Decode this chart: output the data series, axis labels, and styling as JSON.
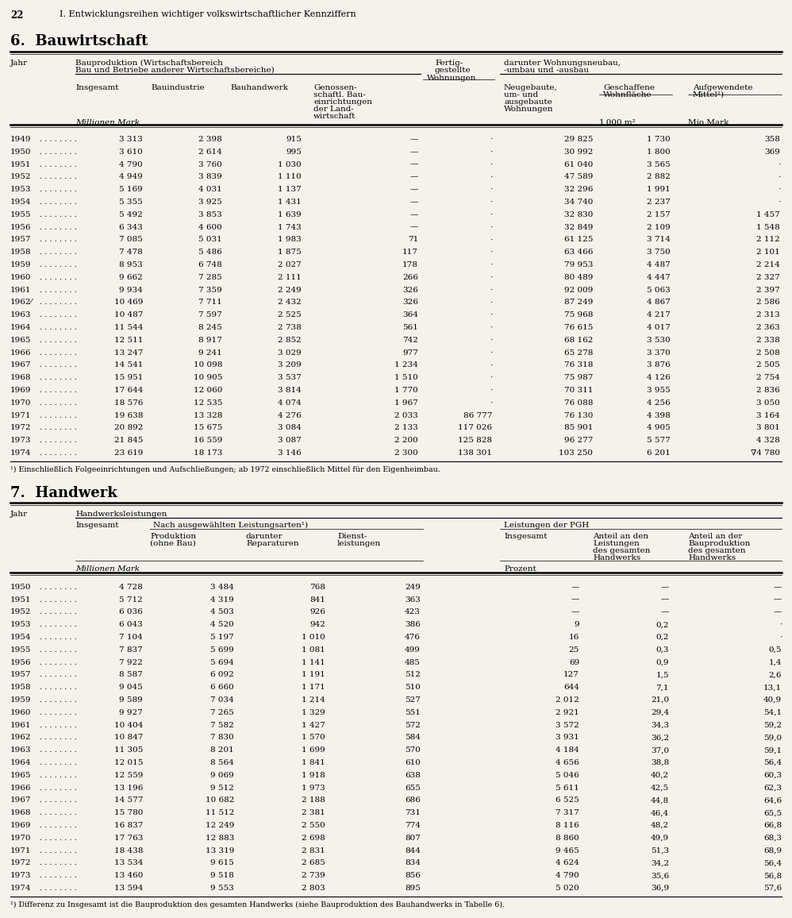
{
  "page_number": "22",
  "page_title": "I. Entwicklungsreihen wichtiger volkswirtschaftlicher Kennziffern",
  "section1_title": "6.  Bauwirtschaft",
  "section2_title": "7.  Handwerk",
  "bg_color": "#f5f2ec",
  "table1": {
    "data": [
      [
        "1949",
        "3 313",
        "2 398",
        "915",
        "—",
        "·",
        "29 825",
        "1 730",
        "358"
      ],
      [
        "1950",
        "3 610",
        "2 614",
        "995",
        "—",
        "·",
        "30 992",
        "1 800",
        "369"
      ],
      [
        "1951",
        "4 790",
        "3 760",
        "1 030",
        "—",
        "·",
        "61 040",
        "3 565",
        "·"
      ],
      [
        "1952",
        "4 949",
        "3 839",
        "1 110",
        "—",
        "·",
        "47 589",
        "2 882",
        "·"
      ],
      [
        "1953",
        "5 169",
        "4 031",
        "1 137",
        "—",
        "·",
        "32 296",
        "1 991",
        "·"
      ],
      [
        "1954",
        "5 355",
        "3 925",
        "1 431",
        "—",
        "·",
        "34 740",
        "2 237",
        "·"
      ],
      [
        "1955",
        "5 492",
        "3 853",
        "1 639",
        "—",
        "·",
        "32 830",
        "2 157",
        "1 457"
      ],
      [
        "1956",
        "6 343",
        "4 600",
        "1 743",
        "—",
        "·",
        "32 849",
        "2 109",
        "1 548"
      ],
      [
        "1957",
        "7 085",
        "5 031",
        "1 983",
        "71",
        "·",
        "61 125",
        "3 714",
        "2 112"
      ],
      [
        "1958",
        "7 478",
        "5 486",
        "1 875",
        "117",
        "·",
        "63 466",
        "3 750",
        "2 101"
      ],
      [
        "1959",
        "8 953",
        "6 748",
        "2 027",
        "178",
        "·",
        "79 953",
        "4 487",
        "2 214"
      ],
      [
        "1960",
        "9 662",
        "7 285",
        "2 111",
        "266",
        "·",
        "80 489",
        "4 447",
        "2 327"
      ],
      [
        "1961",
        "9 934",
        "7 359",
        "2 249",
        "326",
        "·",
        "92 009",
        "5 063",
        "2 397"
      ],
      [
        "1962⁄",
        "10 469",
        "7 711",
        "2 432",
        "326",
        "·",
        "87 249",
        "4 867",
        "2 586"
      ],
      [
        "1963",
        "10 487",
        "7 597",
        "2 525",
        "364",
        "·",
        "75 968",
        "4 217",
        "2 313"
      ],
      [
        "1964",
        "11 544",
        "8 245",
        "2 738",
        "561",
        "·",
        "76 615",
        "4 017",
        "2 363"
      ],
      [
        "1965",
        "12 511",
        "8 917",
        "2 852",
        "742",
        "·",
        "68 162",
        "3 530",
        "2 338"
      ],
      [
        "1966",
        "13 247",
        "9 241",
        "3 029",
        "977",
        "·",
        "65 278",
        "3 370",
        "2 508"
      ],
      [
        "1967",
        "14 541",
        "10 098",
        "3 209",
        "1 234",
        "·",
        "76 318",
        "3 876",
        "2 505"
      ],
      [
        "1968",
        "15 951",
        "10 905",
        "3 537",
        "1 510",
        "·",
        "75 987",
        "4 126",
        "2 754"
      ],
      [
        "1969",
        "17 644",
        "12 060",
        "3 814",
        "1 770",
        "·",
        "70 311",
        "3 955",
        "2 836"
      ],
      [
        "1970",
        "18 576",
        "12 535",
        "4 074",
        "1 967",
        "·",
        "76 088",
        "4 256",
        "3 050"
      ],
      [
        "1971",
        "19 638",
        "13 328",
        "4 276",
        "2 033",
        "86 777",
        "76 130",
        "4 398",
        "3 164"
      ],
      [
        "1972",
        "20 892",
        "15 675",
        "3 084",
        "2 133",
        "117 026",
        "85 901",
        "4 905",
        "3 801"
      ],
      [
        "1973",
        "21 845",
        "16 559",
        "3 087",
        "2 200",
        "125 828",
        "96 277",
        "5 577",
        "4 328"
      ],
      [
        "1974",
        "23 619",
        "18 173",
        "3 146",
        "2 300",
        "138 301",
        "103 250",
        "6 201",
        "∇4 780"
      ]
    ],
    "footnote": "¹) Einschließlich Folgeeinrichtungen und Aufschließungen; ab 1972 einschließlich Mittel für den Eigenheimbau."
  },
  "table2": {
    "data": [
      [
        "1950",
        "4 728",
        "3 484",
        "768",
        "249",
        "—",
        "—",
        "—"
      ],
      [
        "1951",
        "5 712",
        "4 319",
        "841",
        "363",
        "—",
        "—",
        "—"
      ],
      [
        "1952",
        "6 036",
        "4 503",
        "926",
        "423",
        "—",
        "—",
        "—"
      ],
      [
        "1953",
        "6 043",
        "4 520",
        "942",
        "386",
        "9",
        "0,2",
        "·"
      ],
      [
        "1954",
        "7 104",
        "5 197",
        "1 010",
        "476",
        "16",
        "0,2",
        "·"
      ],
      [
        "1955",
        "7 837",
        "5 699",
        "1 081",
        "499",
        "25",
        "0,3",
        "0,5"
      ],
      [
        "1956",
        "7 922",
        "5 694",
        "1 141",
        "485",
        "69",
        "0,9",
        "1,4"
      ],
      [
        "1957",
        "8 587",
        "6 092",
        "1 191",
        "512",
        "127",
        "1,5",
        "2,6"
      ],
      [
        "1958",
        "9 045",
        "6 660",
        "1 171",
        "510",
        "644",
        "7,1",
        "13,1"
      ],
      [
        "1959",
        "9 589",
        "7 034",
        "1 214",
        "527",
        "2 012",
        "21,0",
        "40,9"
      ],
      [
        "1960",
        "9 927",
        "7 265",
        "1 329",
        "551",
        "2 921",
        "29,4",
        "54,1"
      ],
      [
        "1961",
        "10 404",
        "7 582",
        "1 427",
        "572",
        "3 572",
        "34,3",
        "59,2"
      ],
      [
        "1962",
        "10 847",
        "7 830",
        "1 570",
        "584",
        "3 931",
        "36,2",
        "59,0"
      ],
      [
        "1963",
        "11 305",
        "8 201",
        "1 699",
        "570",
        "4 184",
        "37,0",
        "59,1"
      ],
      [
        "1964",
        "12 015",
        "8 564",
        "1 841",
        "610",
        "4 656",
        "38,8",
        "56,4"
      ],
      [
        "1965",
        "12 559",
        "9 069",
        "1 918",
        "638",
        "5 046",
        "40,2",
        "60,3"
      ],
      [
        "1966",
        "13 196",
        "9 512",
        "1 973",
        "655",
        "5 611",
        "42,5",
        "62,3"
      ],
      [
        "1967",
        "14 577",
        "10 682",
        "2 188",
        "686",
        "6 525",
        "44,8",
        "64,6"
      ],
      [
        "1968",
        "15 780",
        "11 512",
        "2 381",
        "731",
        "7 317",
        "46,4",
        "65,5"
      ],
      [
        "1969",
        "16 837",
        "12 249",
        "2 550",
        "774",
        "8 116",
        "48,2",
        "66,8"
      ],
      [
        "1970",
        "17 763",
        "12 883",
        "2 698",
        "807",
        "8 860",
        "49,9",
        "68,3"
      ],
      [
        "1971",
        "18 438",
        "13 319",
        "2 831",
        "844",
        "9 465",
        "51,3",
        "68,9"
      ],
      [
        "1972",
        "13 534",
        "9 615",
        "2 685",
        "834",
        "4 624",
        "34,2",
        "56,4"
      ],
      [
        "1973",
        "13 460",
        "9 518",
        "2 739",
        "856",
        "4 790",
        "35,6",
        "56,8"
      ],
      [
        "1974",
        "13 594",
        "9 553",
        "2 803",
        "895",
        "5 020",
        "36,9",
        "57,6"
      ]
    ],
    "footnote": "¹) Differenz zu Insgesamt ist die Bauproduktion des gesamten Handwerks (siehe Bauproduktion des Bauhandwerks in Tabelle 6)."
  }
}
